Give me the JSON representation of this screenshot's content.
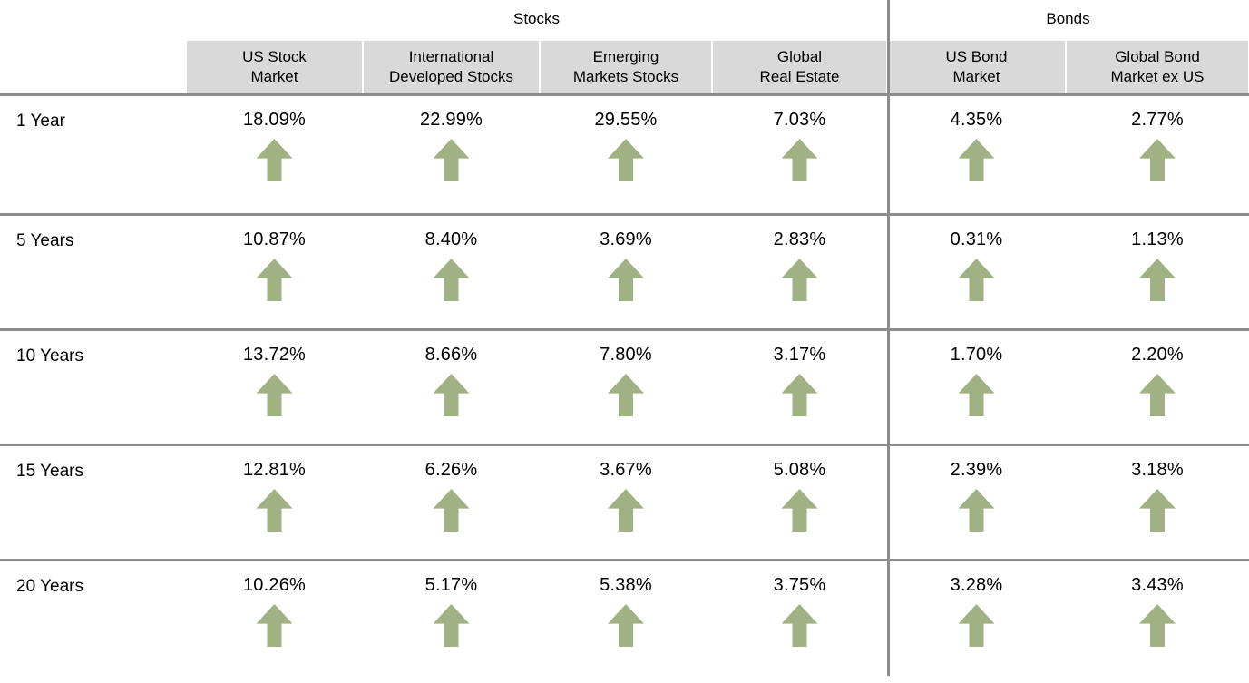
{
  "table": {
    "groups": [
      {
        "label": "Stocks"
      },
      {
        "label": "Bonds"
      }
    ],
    "columns": [
      {
        "group": "Stocks",
        "line1": "US Stock",
        "line2": "Market"
      },
      {
        "group": "Stocks",
        "line1": "International",
        "line2": "Developed Stocks"
      },
      {
        "group": "Stocks",
        "line1": "Emerging",
        "line2": "Markets Stocks"
      },
      {
        "group": "Stocks",
        "line1": "Global",
        "line2": "Real Estate"
      },
      {
        "group": "Bonds",
        "line1": "US Bond",
        "line2": "Market"
      },
      {
        "group": "Bonds",
        "line1": "Global Bond",
        "line2": "Market ex US"
      }
    ],
    "rows": [
      {
        "period": "1 Year",
        "values": [
          "18.09%",
          "22.99%",
          "29.55%",
          "7.03%",
          "4.35%",
          "2.77%"
        ]
      },
      {
        "period": "5 Years",
        "values": [
          "10.87%",
          "8.40%",
          "3.69%",
          "2.83%",
          "0.31%",
          "1.13%"
        ]
      },
      {
        "period": "10 Years",
        "values": [
          "13.72%",
          "8.66%",
          "7.80%",
          "3.17%",
          "1.70%",
          "2.20%"
        ]
      },
      {
        "period": "15 Years",
        "values": [
          "12.81%",
          "6.26%",
          "3.67%",
          "5.08%",
          "2.39%",
          "3.18%"
        ]
      },
      {
        "period": "20 Years",
        "values": [
          "10.26%",
          "5.17%",
          "5.38%",
          "3.75%",
          "3.28%",
          "3.43%"
        ]
      }
    ],
    "trend_icon": "up-arrow",
    "colors": {
      "arrow_green": "#a0b184",
      "header_cell_bg": "#d9d9d9",
      "rule_gray": "#8c8c8c",
      "text": "#000000"
    }
  },
  "chart_data": {
    "type": "table",
    "title": "",
    "row_labels": [
      "1 Year",
      "5 Years",
      "10 Years",
      "15 Years",
      "20 Years"
    ],
    "column_groups": [
      {
        "label": "Stocks",
        "columns": [
          "US Stock Market",
          "International Developed Stocks",
          "Emerging Markets Stocks",
          "Global Real Estate"
        ]
      },
      {
        "label": "Bonds",
        "columns": [
          "US Bond Market",
          "Global Bond Market ex US"
        ]
      }
    ],
    "series": [
      {
        "name": "US Stock Market",
        "group": "Stocks",
        "values_pct": [
          18.09,
          10.87,
          13.72,
          12.81,
          10.26
        ]
      },
      {
        "name": "International Developed Stocks",
        "group": "Stocks",
        "values_pct": [
          22.99,
          8.4,
          8.66,
          6.26,
          5.17
        ]
      },
      {
        "name": "Emerging Markets Stocks",
        "group": "Stocks",
        "values_pct": [
          29.55,
          3.69,
          7.8,
          3.67,
          5.38
        ]
      },
      {
        "name": "Global Real Estate",
        "group": "Stocks",
        "values_pct": [
          7.03,
          2.83,
          3.17,
          5.08,
          3.75
        ]
      },
      {
        "name": "US Bond Market",
        "group": "Bonds",
        "values_pct": [
          4.35,
          0.31,
          1.7,
          2.39,
          3.28
        ]
      },
      {
        "name": "Global Bond Market ex US",
        "group": "Bonds",
        "values_pct": [
          2.77,
          1.13,
          2.2,
          3.18,
          3.43
        ]
      }
    ],
    "cell_annotation": "every cell shows a green up-arrow trend indicator",
    "layout": {
      "grid": "off",
      "group_divider": "vertical gray line between Stocks and Bonds"
    }
  }
}
